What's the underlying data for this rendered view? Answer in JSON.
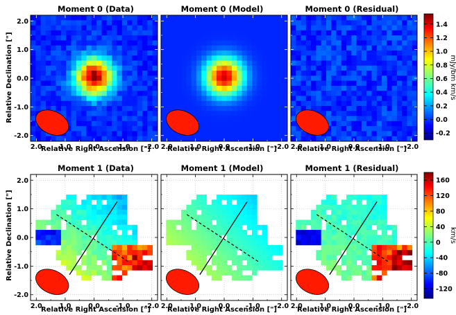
{
  "chart_data": [
    {
      "type": "heatmap",
      "title": "Moment 0 (Data)",
      "xlabel": "Relative Right Ascension [\"]",
      "ylabel": "Relative Declination [\"]",
      "x_ticks": [
        "2.0",
        "1.0",
        "0.0",
        "-1.0",
        "-2.0"
      ],
      "y_ticks": [
        "2.0",
        "1.0",
        "0.0",
        "-1.0",
        "-2.0"
      ],
      "xlim": [
        2.2,
        -2.2
      ],
      "ylim": [
        -2.2,
        2.2
      ],
      "peak": {
        "x": 0.0,
        "y": 0.05,
        "value": 1.5
      },
      "sigma_arcsec": 0.45,
      "noise": "low",
      "beam": {
        "x": 1.45,
        "y": -1.55,
        "major": 1.2,
        "minor": 0.8
      }
    },
    {
      "type": "heatmap",
      "title": "Moment 0 (Model)",
      "xlabel": "Relative Right Ascension [\"]",
      "x_ticks": [
        "2.0",
        "1.0",
        "0.0",
        "-1.0",
        "-2.0"
      ],
      "xlim": [
        2.2,
        -2.2
      ],
      "ylim": [
        -2.2,
        2.2
      ],
      "peak": {
        "x": 0.0,
        "y": 0.05,
        "value": 1.4
      },
      "sigma_arcsec": 0.45,
      "noise": "none",
      "beam": {
        "x": 1.45,
        "y": -1.55,
        "major": 1.2,
        "minor": 0.8
      }
    },
    {
      "type": "heatmap",
      "title": "Moment 0 (Residual)",
      "xlabel": "Relative Right Ascension [\"]",
      "x_ticks": [
        "2.0",
        "1.0",
        "0.0",
        "-1.0",
        "-2.0"
      ],
      "xlim": [
        2.2,
        -2.2
      ],
      "ylim": [
        -2.2,
        2.2
      ],
      "peak": {
        "x": 0.0,
        "y": 0.0,
        "value": 0.1
      },
      "sigma_arcsec": 0.6,
      "noise": "residual",
      "beam": {
        "x": 1.45,
        "y": -1.55,
        "major": 1.2,
        "minor": 0.8
      }
    },
    {
      "type": "heatmap",
      "title": "Moment 1 (Data)",
      "xlabel": "Relative Right Ascension [\"]",
      "ylabel": "Relative Declination [\"]",
      "x_ticks": [
        "2.0",
        "1.0",
        "0.0",
        "-1.0",
        "-2.0"
      ],
      "y_ticks": [
        "2.0",
        "1.0",
        "0.0",
        "-1.0",
        "-2.0"
      ],
      "xlim": [
        2.2,
        -2.2
      ],
      "ylim": [
        -2.2,
        2.2
      ],
      "velocity_gradient": "blue toward north-west, red toward south-east",
      "velocity_range_kms": [
        -140,
        170
      ],
      "major_axis": {
        "x1": 0.85,
        "y1": -1.3,
        "x2": -0.8,
        "y2": 1.25
      },
      "minor_axis": {
        "x1": 1.3,
        "y1": 0.8,
        "x2": -1.2,
        "y2": -0.85
      },
      "beam": {
        "x": 1.45,
        "y": -1.55,
        "major": 1.2,
        "minor": 0.8
      }
    },
    {
      "type": "heatmap",
      "title": "Moment 1 (Model)",
      "xlabel": "Relative Right Ascension [\"]",
      "x_ticks": [
        "2.0",
        "1.0",
        "0.0",
        "-1.0",
        "-2.0"
      ],
      "xlim": [
        2.2,
        -2.2
      ],
      "ylim": [
        -2.2,
        2.2
      ],
      "velocity_range_kms": [
        -40,
        50
      ],
      "major_axis": {
        "x1": 0.85,
        "y1": -1.3,
        "x2": -0.8,
        "y2": 1.25
      },
      "minor_axis": {
        "x1": 1.3,
        "y1": 0.8,
        "x2": -1.2,
        "y2": -0.85
      },
      "beam": {
        "x": 1.45,
        "y": -1.55,
        "major": 1.2,
        "minor": 0.8
      }
    },
    {
      "type": "heatmap",
      "title": "Moment 1 (Residual)",
      "xlabel": "Relative Right Ascension [\"]",
      "x_ticks": [
        "2.0",
        "1.0",
        "0.0",
        "-1.0",
        "-2.0"
      ],
      "xlim": [
        2.2,
        -2.2
      ],
      "ylim": [
        -2.2,
        2.2
      ],
      "velocity_range_kms": [
        -140,
        170
      ],
      "major_axis": {
        "x1": 0.85,
        "y1": -1.3,
        "x2": -0.8,
        "y2": 1.25
      },
      "minor_axis": {
        "x1": 1.3,
        "y1": 0.8,
        "x2": -1.2,
        "y2": -0.85
      },
      "beam": {
        "x": 1.45,
        "y": -1.55,
        "major": 1.2,
        "minor": 0.8
      }
    }
  ],
  "colorbars": [
    {
      "label": "mJy/bm km/s",
      "ticks": [
        "1.4",
        "1.2",
        "1.0",
        "0.8",
        "0.6",
        "0.4",
        "0.2",
        "0.0",
        "-0.2"
      ],
      "range": [
        -0.3,
        1.55
      ]
    },
    {
      "label": "km/s",
      "ticks": [
        "160",
        "120",
        "80",
        "40",
        "0",
        "-40",
        "-80",
        "-120"
      ],
      "range": [
        -145,
        180
      ]
    }
  ],
  "colormap": "jet",
  "beam_color": "#ff1a00"
}
